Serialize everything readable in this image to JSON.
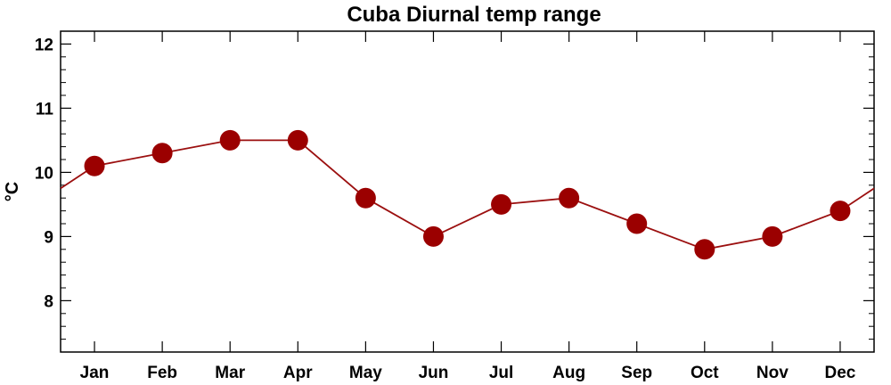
{
  "chart_data": {
    "type": "line",
    "title": "Cuba Diurnal temp range",
    "xlabel": "",
    "ylabel": "°C",
    "categories": [
      "Jan",
      "Feb",
      "Mar",
      "Apr",
      "May",
      "Jun",
      "Jul",
      "Aug",
      "Sep",
      "Oct",
      "Nov",
      "Dec"
    ],
    "values": [
      10.1,
      10.3,
      10.5,
      10.5,
      9.6,
      9.0,
      9.5,
      9.6,
      9.2,
      8.8,
      9.0,
      9.4
    ],
    "ylim": [
      7.2,
      12.2
    ],
    "yticks": [
      8,
      9,
      10,
      11,
      12
    ],
    "grid": false,
    "wraps_around": true,
    "colors": {
      "line": "#9b0f0f",
      "marker": "#9b0000",
      "axis": "#000000"
    }
  }
}
